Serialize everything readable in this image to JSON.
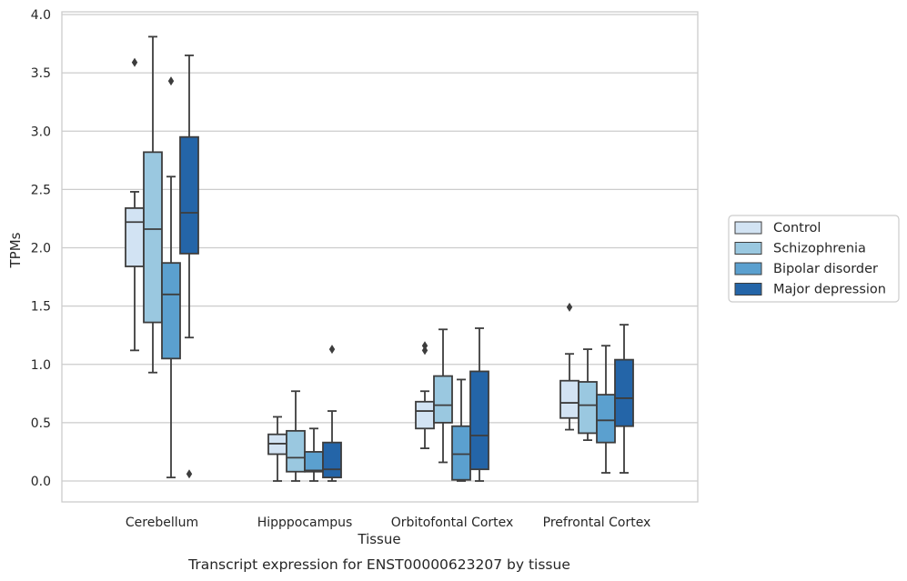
{
  "chart_data": {
    "type": "box",
    "xlabel": "Tissue",
    "ylabel": "TPMs",
    "caption": "Transcript expression for ENST00000623207 by tissue",
    "ylim": [
      -0.18,
      4.02
    ],
    "yticks": [
      0.0,
      0.5,
      1.0,
      1.5,
      2.0,
      2.5,
      3.0,
      3.5,
      4.0
    ],
    "ytick_labels": [
      "0.0",
      "0.5",
      "1.0",
      "1.5",
      "2.0",
      "2.5",
      "3.0",
      "3.5",
      "4.0"
    ],
    "grid": "horizontal",
    "legend_position": "right",
    "categories": [
      "Cerebellum",
      "Hipppocampus",
      "Orbitofontal Cortex",
      "Prefrontal Cortex"
    ],
    "series": [
      {
        "name": "Control",
        "color": "#d2e3f3",
        "boxes": [
          {
            "whislo": 1.12,
            "q1": 1.84,
            "med": 2.22,
            "q3": 2.34,
            "whishi": 2.48,
            "fliers": [
              3.59
            ]
          },
          {
            "whislo": 0.0,
            "q1": 0.23,
            "med": 0.32,
            "q3": 0.4,
            "whishi": 0.55,
            "fliers": []
          },
          {
            "whislo": 0.28,
            "q1": 0.45,
            "med": 0.6,
            "q3": 0.68,
            "whishi": 0.77,
            "fliers": [
              1.12,
              1.16
            ]
          },
          {
            "whislo": 0.44,
            "q1": 0.54,
            "med": 0.67,
            "q3": 0.86,
            "whishi": 1.09,
            "fliers": [
              1.49
            ]
          }
        ]
      },
      {
        "name": "Schizophrenia",
        "color": "#9ac8e0",
        "boxes": [
          {
            "whislo": 0.93,
            "q1": 1.36,
            "med": 2.16,
            "q3": 2.82,
            "whishi": 3.81,
            "fliers": []
          },
          {
            "whislo": 0.0,
            "q1": 0.08,
            "med": 0.2,
            "q3": 0.43,
            "whishi": 0.77,
            "fliers": []
          },
          {
            "whislo": 0.16,
            "q1": 0.5,
            "med": 0.65,
            "q3": 0.9,
            "whishi": 1.3,
            "fliers": []
          },
          {
            "whislo": 0.35,
            "q1": 0.41,
            "med": 0.65,
            "q3": 0.85,
            "whishi": 1.13,
            "fliers": []
          }
        ]
      },
      {
        "name": "Bipolar disorder",
        "color": "#5ba0cf",
        "boxes": [
          {
            "whislo": 0.03,
            "q1": 1.05,
            "med": 1.6,
            "q3": 1.87,
            "whishi": 2.61,
            "fliers": [
              3.43
            ]
          },
          {
            "whislo": 0.0,
            "q1": 0.08,
            "med": 0.09,
            "q3": 0.25,
            "whishi": 0.45,
            "fliers": []
          },
          {
            "whislo": 0.0,
            "q1": 0.01,
            "med": 0.23,
            "q3": 0.47,
            "whishi": 0.87,
            "fliers": []
          },
          {
            "whislo": 0.07,
            "q1": 0.33,
            "med": 0.52,
            "q3": 0.74,
            "whishi": 1.16,
            "fliers": []
          }
        ]
      },
      {
        "name": "Major depression",
        "color": "#2465a8",
        "boxes": [
          {
            "whislo": 1.23,
            "q1": 1.95,
            "med": 2.3,
            "q3": 2.95,
            "whishi": 3.65,
            "fliers": [
              0.06
            ]
          },
          {
            "whislo": 0.0,
            "q1": 0.03,
            "med": 0.1,
            "q3": 0.33,
            "whishi": 0.6,
            "fliers": [
              1.13
            ]
          },
          {
            "whislo": 0.0,
            "q1": 0.1,
            "med": 0.39,
            "q3": 0.94,
            "whishi": 1.31,
            "fliers": []
          },
          {
            "whislo": 0.07,
            "q1": 0.47,
            "med": 0.71,
            "q3": 1.04,
            "whishi": 1.34,
            "fliers": []
          }
        ]
      }
    ]
  }
}
